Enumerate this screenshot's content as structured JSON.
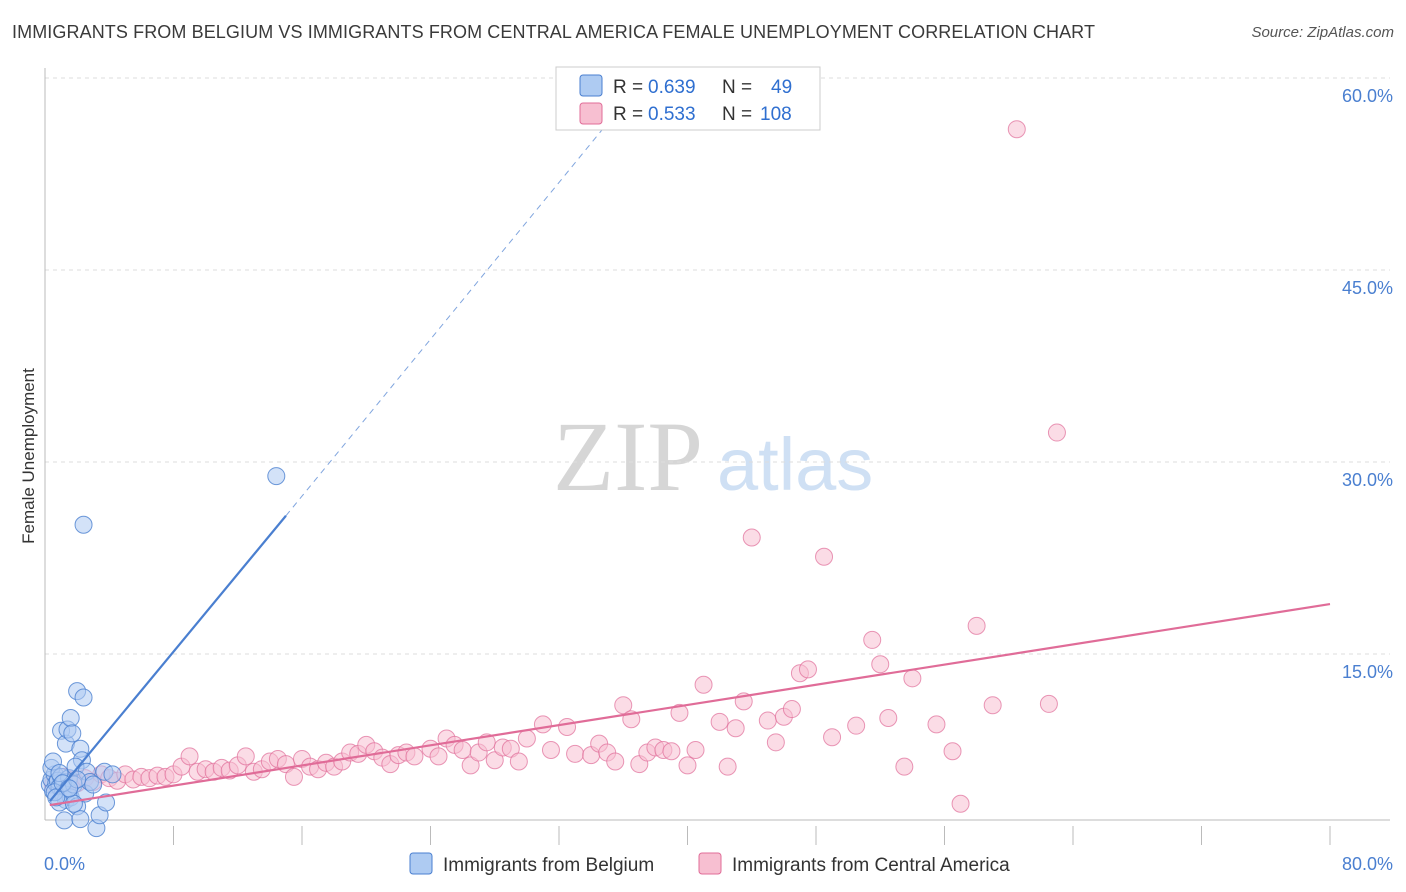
{
  "title": "IMMIGRANTS FROM BELGIUM VS IMMIGRANTS FROM CENTRAL AMERICA FEMALE UNEMPLOYMENT CORRELATION CHART",
  "source": "Source: ZipAtlas.com",
  "watermark": {
    "zip": "ZIP",
    "atlas": "atlas"
  },
  "colors": {
    "belgium": "#4a7fd0",
    "belgium_fill": "#aecbf2",
    "central_america": "#e06c98",
    "central_america_fill": "#f7bfd1",
    "grid": "#dddddd",
    "tick_text": "#4a7fd0"
  },
  "legend": {
    "rows": [
      {
        "r_label": "R =",
        "r_value": "0.639",
        "n_label": "N =",
        "n_value": "49"
      },
      {
        "r_label": "R =",
        "r_value": "0.533",
        "n_label": "N =",
        "n_value": "108"
      }
    ]
  },
  "chart_data": {
    "type": "scatter",
    "xlabel": "",
    "ylabel": "Female Unemployment",
    "xlim": [
      0,
      80
    ],
    "ylim": [
      0,
      62
    ],
    "x_tick_labels": {
      "min": "0.0%",
      "max": "80.0%"
    },
    "y_ticks": [
      {
        "value": 15,
        "label": "15.0%"
      },
      {
        "value": 30,
        "label": "30.0%"
      },
      {
        "value": 45,
        "label": "45.0%"
      },
      {
        "value": 60,
        "label": "60.0%"
      }
    ],
    "series": [
      {
        "name": "Immigrants from Belgium",
        "r": 0.639,
        "n": 49,
        "trend": {
          "x0": 0.3,
          "y0": 3.5,
          "x1": 15.0,
          "y1": 25.8,
          "dash_x_end": 37.0,
          "dash_y_end": 59.5
        },
        "points": [
          [
            0.3,
            4.8
          ],
          [
            0.4,
            5.2
          ],
          [
            0.5,
            4.3
          ],
          [
            0.6,
            5.6
          ],
          [
            0.7,
            4.9
          ],
          [
            0.4,
            6.1
          ],
          [
            0.5,
            6.6
          ],
          [
            0.8,
            5.1
          ],
          [
            0.9,
            4.6
          ],
          [
            1.0,
            5.4
          ],
          [
            1.2,
            5.0
          ],
          [
            1.1,
            4.1
          ],
          [
            1.3,
            3.6
          ],
          [
            1.4,
            4.4
          ],
          [
            1.5,
            5.3
          ],
          [
            1.6,
            3.8
          ],
          [
            1.8,
            4.8
          ],
          [
            2.0,
            3.1
          ],
          [
            0.9,
            3.4
          ],
          [
            1.2,
            2.0
          ],
          [
            1.0,
            9.0
          ],
          [
            1.3,
            8.0
          ],
          [
            1.4,
            9.1
          ],
          [
            1.6,
            10.0
          ],
          [
            1.7,
            8.8
          ],
          [
            2.0,
            12.1
          ],
          [
            2.4,
            11.6
          ],
          [
            2.2,
            7.6
          ],
          [
            2.3,
            6.7
          ],
          [
            1.9,
            6.2
          ],
          [
            2.5,
            4.1
          ],
          [
            2.6,
            5.8
          ],
          [
            2.2,
            2.1
          ],
          [
            2.8,
            5.0
          ],
          [
            3.0,
            4.8
          ],
          [
            3.2,
            1.4
          ],
          [
            3.4,
            2.4
          ],
          [
            3.8,
            3.4
          ],
          [
            3.7,
            5.8
          ],
          [
            4.2,
            5.6
          ],
          [
            2.4,
            25.1
          ],
          [
            14.4,
            28.9
          ],
          [
            0.6,
            4.2
          ],
          [
            0.7,
            3.8
          ],
          [
            0.9,
            5.7
          ],
          [
            1.1,
            4.9
          ],
          [
            1.8,
            3.3
          ],
          [
            2.0,
            5.2
          ],
          [
            1.5,
            4.5
          ]
        ]
      },
      {
        "name": "Immigrants from Central America",
        "r": 0.533,
        "n": 108,
        "trend": {
          "x0": 0.3,
          "y0": 3.2,
          "x1": 80.0,
          "y1": 18.9
        },
        "points": [
          [
            0.5,
            4.8
          ],
          [
            0.8,
            5.1
          ],
          [
            1.0,
            4.6
          ],
          [
            1.2,
            5.4
          ],
          [
            1.5,
            5.0
          ],
          [
            1.8,
            5.2
          ],
          [
            2.0,
            4.9
          ],
          [
            2.5,
            5.3
          ],
          [
            3.0,
            5.0
          ],
          [
            3.5,
            5.6
          ],
          [
            4.0,
            5.3
          ],
          [
            4.5,
            5.1
          ],
          [
            5.0,
            5.6
          ],
          [
            5.5,
            5.2
          ],
          [
            6.0,
            5.4
          ],
          [
            6.5,
            5.3
          ],
          [
            7.0,
            5.5
          ],
          [
            7.5,
            5.4
          ],
          [
            8.0,
            5.6
          ],
          [
            8.5,
            6.2
          ],
          [
            9.0,
            7.0
          ],
          [
            9.5,
            5.8
          ],
          [
            10.0,
            6.0
          ],
          [
            10.5,
            5.8
          ],
          [
            11.0,
            6.1
          ],
          [
            11.5,
            5.9
          ],
          [
            12.0,
            6.3
          ],
          [
            12.5,
            7.0
          ],
          [
            13.0,
            5.8
          ],
          [
            13.5,
            6.0
          ],
          [
            14.0,
            6.6
          ],
          [
            14.5,
            6.8
          ],
          [
            15.0,
            6.4
          ],
          [
            15.5,
            5.4
          ],
          [
            16.0,
            6.8
          ],
          [
            16.5,
            6.2
          ],
          [
            17.0,
            6.0
          ],
          [
            17.5,
            6.5
          ],
          [
            18.0,
            6.2
          ],
          [
            18.5,
            6.6
          ],
          [
            19.0,
            7.3
          ],
          [
            19.5,
            7.2
          ],
          [
            20.0,
            7.9
          ],
          [
            20.5,
            7.4
          ],
          [
            21.0,
            6.9
          ],
          [
            21.5,
            6.4
          ],
          [
            22.0,
            7.1
          ],
          [
            22.5,
            7.3
          ],
          [
            23.0,
            7.0
          ],
          [
            24.0,
            7.6
          ],
          [
            24.5,
            7.0
          ],
          [
            25.0,
            8.4
          ],
          [
            25.5,
            7.9
          ],
          [
            26.0,
            7.5
          ],
          [
            26.5,
            6.3
          ],
          [
            27.0,
            7.3
          ],
          [
            27.5,
            8.1
          ],
          [
            28.0,
            6.7
          ],
          [
            28.5,
            7.7
          ],
          [
            29.0,
            7.6
          ],
          [
            29.5,
            6.6
          ],
          [
            30.0,
            8.4
          ],
          [
            31.0,
            9.5
          ],
          [
            31.5,
            7.5
          ],
          [
            32.5,
            9.3
          ],
          [
            33.0,
            7.2
          ],
          [
            34.0,
            7.1
          ],
          [
            34.5,
            8.0
          ],
          [
            35.0,
            7.3
          ],
          [
            35.5,
            6.6
          ],
          [
            36.0,
            11.0
          ],
          [
            36.5,
            9.9
          ],
          [
            37.0,
            6.4
          ],
          [
            37.5,
            7.3
          ],
          [
            38.0,
            7.7
          ],
          [
            38.5,
            7.5
          ],
          [
            39.0,
            7.4
          ],
          [
            39.5,
            10.4
          ],
          [
            40.0,
            6.3
          ],
          [
            40.5,
            7.5
          ],
          [
            41.0,
            12.6
          ],
          [
            42.0,
            9.7
          ],
          [
            42.5,
            6.2
          ],
          [
            43.0,
            9.2
          ],
          [
            43.5,
            11.3
          ],
          [
            44.0,
            24.1
          ],
          [
            45.0,
            9.8
          ],
          [
            45.5,
            8.1
          ],
          [
            46.0,
            10.1
          ],
          [
            46.5,
            10.7
          ],
          [
            47.0,
            13.5
          ],
          [
            47.5,
            13.8
          ],
          [
            48.5,
            22.6
          ],
          [
            49.0,
            8.5
          ],
          [
            50.5,
            9.4
          ],
          [
            51.5,
            16.1
          ],
          [
            52.0,
            14.2
          ],
          [
            52.5,
            10.0
          ],
          [
            53.5,
            6.2
          ],
          [
            54.0,
            13.1
          ],
          [
            55.5,
            9.5
          ],
          [
            56.5,
            7.4
          ],
          [
            57.0,
            3.3
          ],
          [
            58.0,
            17.2
          ],
          [
            59.0,
            11.0
          ],
          [
            60.5,
            56.0
          ],
          [
            62.5,
            11.1
          ],
          [
            63.0,
            32.3
          ]
        ]
      }
    ],
    "legend_entries": [
      "Immigrants from Belgium",
      "Immigrants from Central America"
    ]
  }
}
